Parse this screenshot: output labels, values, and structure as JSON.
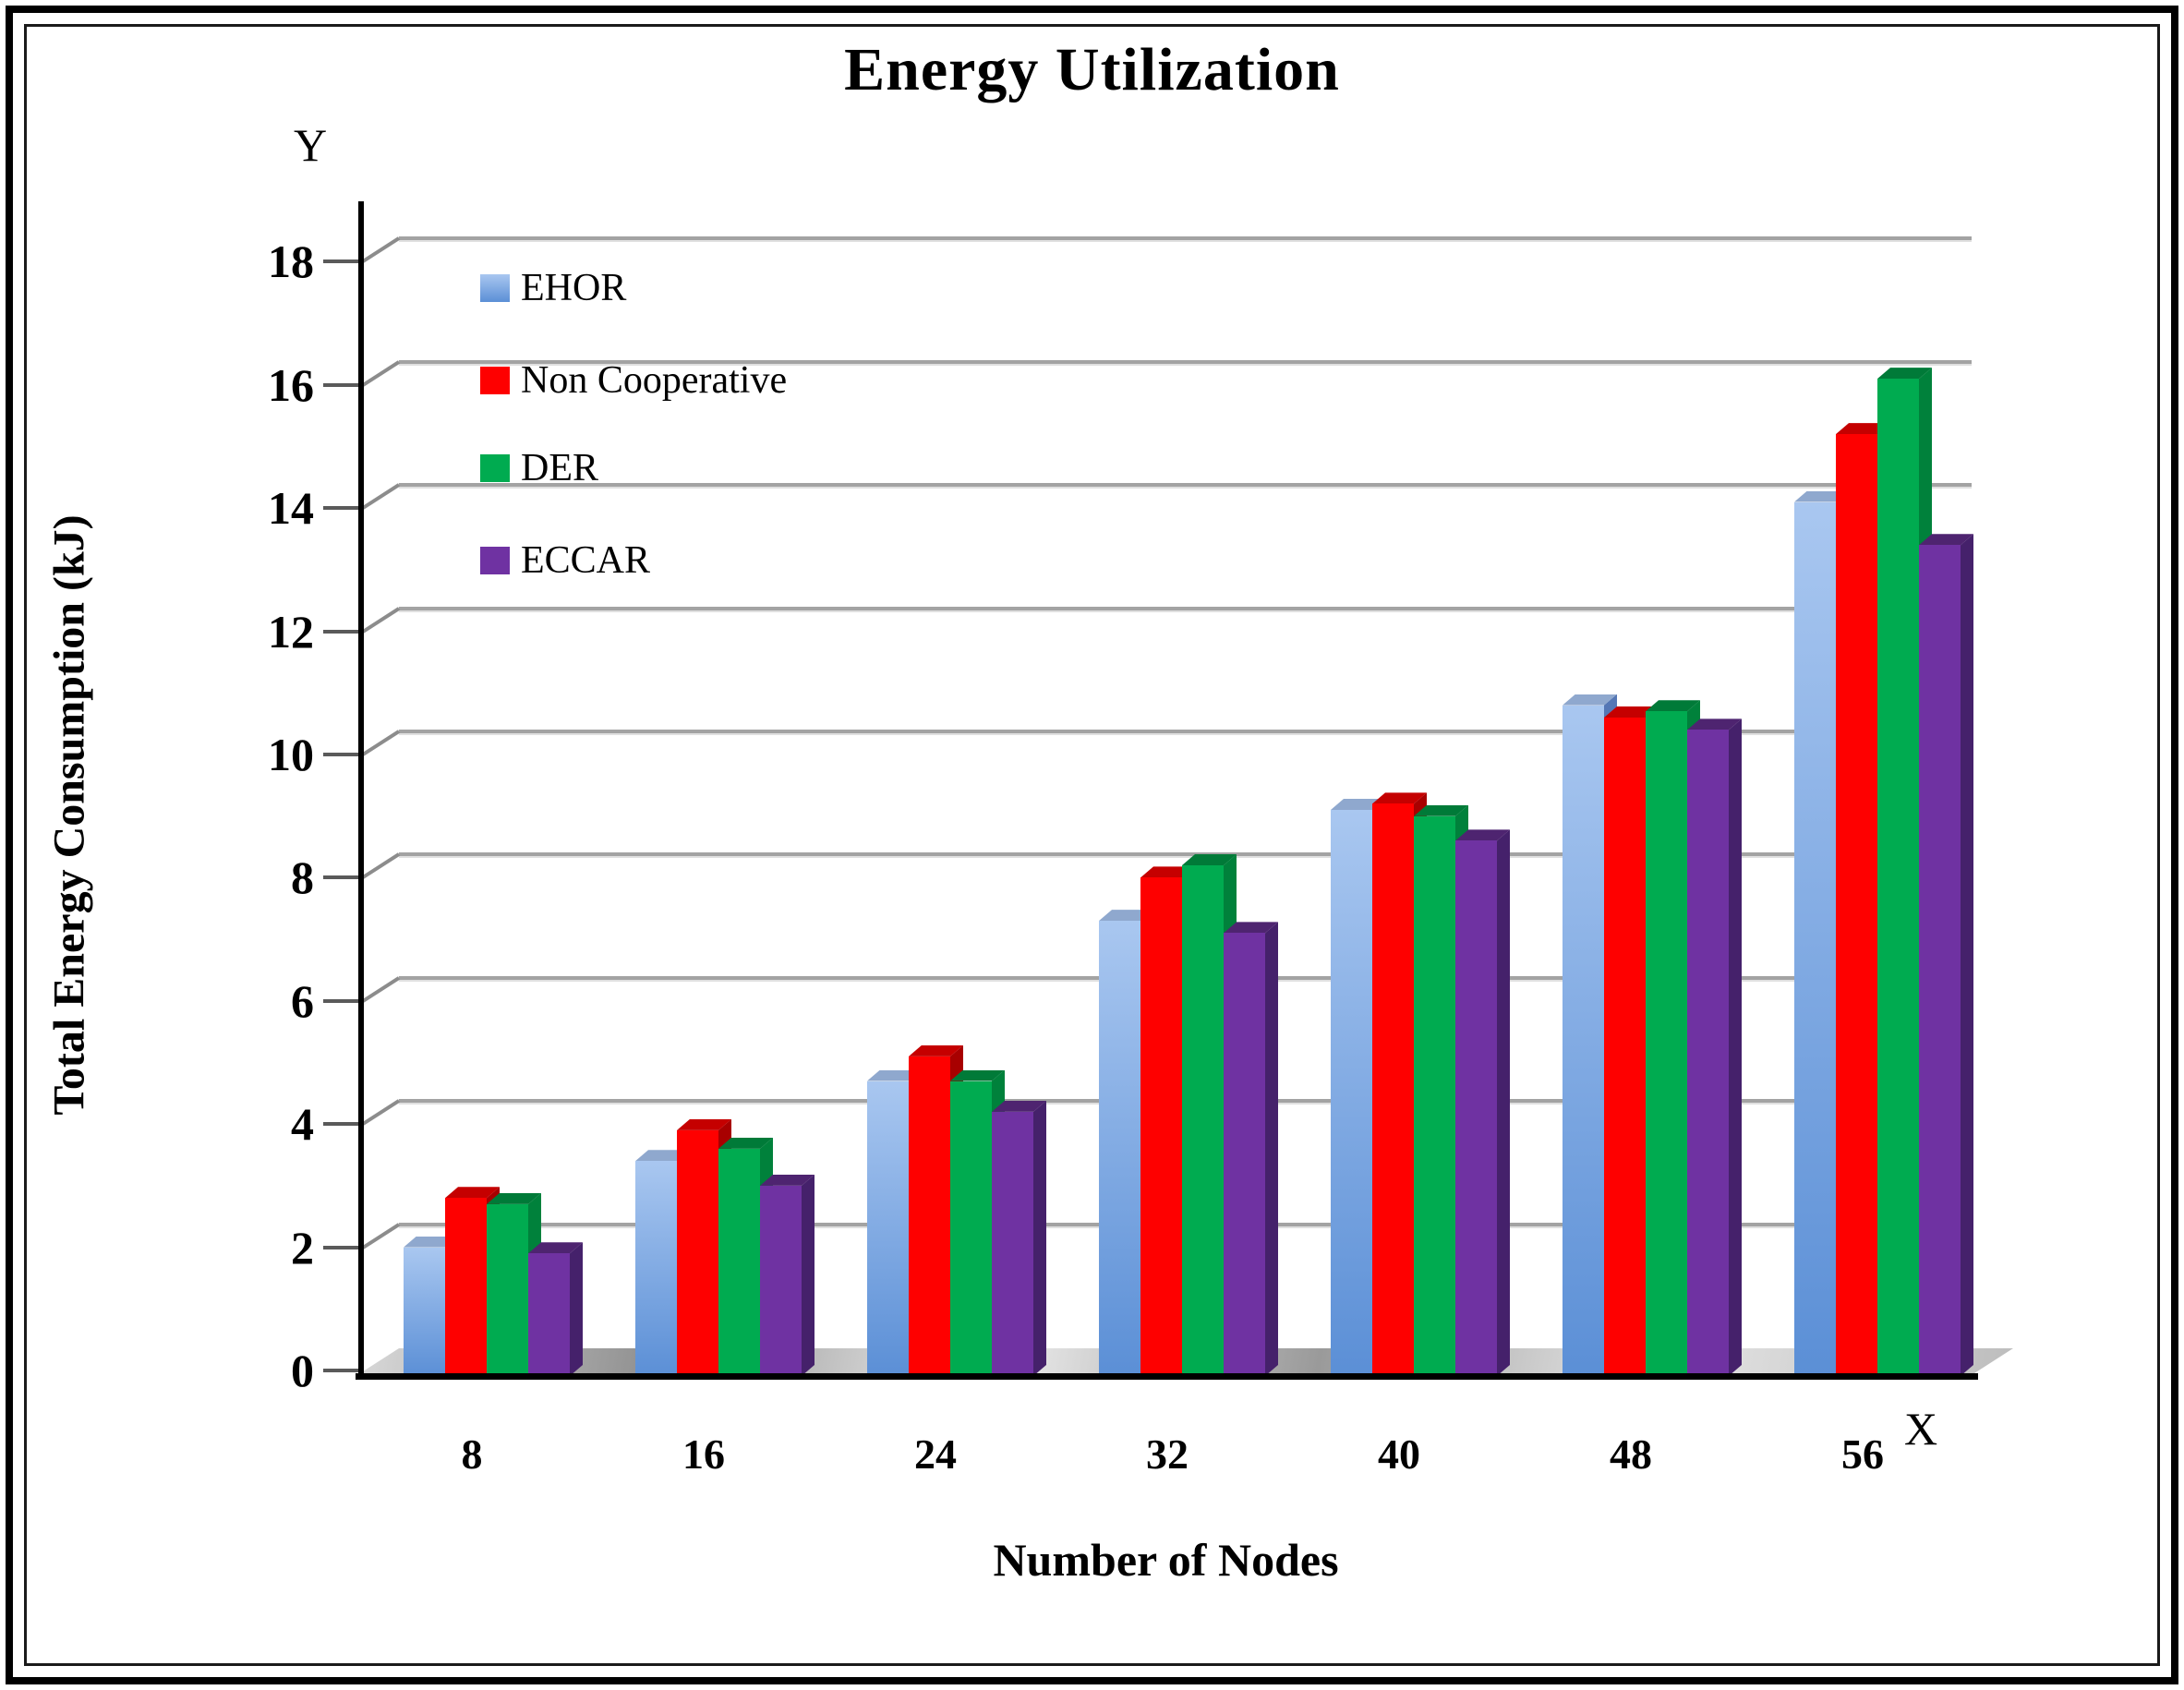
{
  "title": "Energy Utilization",
  "axis_letters": {
    "y": "Y",
    "x": "X"
  },
  "chart_data": {
    "type": "bar",
    "title": "Energy Utilization",
    "xlabel": "Number of Nodes",
    "ylabel": "Total Energy Consumption (kJ)",
    "categories": [
      "8",
      "16",
      "24",
      "32",
      "40",
      "48",
      "56"
    ],
    "series": [
      {
        "name": "EHOR",
        "values": [
          2.0,
          3.4,
          4.7,
          7.3,
          9.1,
          10.8,
          14.1
        ],
        "color": "#5b8fd6",
        "color_light": "#a9c7f0",
        "color_top": "#8fa8ce",
        "color_side": "#5577b5"
      },
      {
        "name": "Non Cooperative",
        "values": [
          2.8,
          3.9,
          5.1,
          8.0,
          9.2,
          10.6,
          15.2
        ],
        "color": "#fe0000",
        "color_light": "#fe0000",
        "color_top": "#c50000",
        "color_side": "#a80000"
      },
      {
        "name": "DER",
        "values": [
          2.7,
          3.6,
          4.7,
          8.2,
          9.0,
          10.7,
          16.1
        ],
        "color": "#00ab50",
        "color_light": "#00ab50",
        "color_top": "#007a38",
        "color_side": "#00813b"
      },
      {
        "name": "ECCAR",
        "values": [
          1.9,
          3.0,
          4.2,
          7.1,
          8.6,
          10.4,
          13.4
        ],
        "color": "#6f32a2",
        "color_light": "#6f32a2",
        "color_top": "#4e2470",
        "color_side": "#45216b"
      }
    ],
    "ylim": [
      0,
      18
    ],
    "ytick_step": 2,
    "grid": true,
    "gridline_color": "#a3a3a3",
    "legend_position": "upper-left-inside"
  }
}
